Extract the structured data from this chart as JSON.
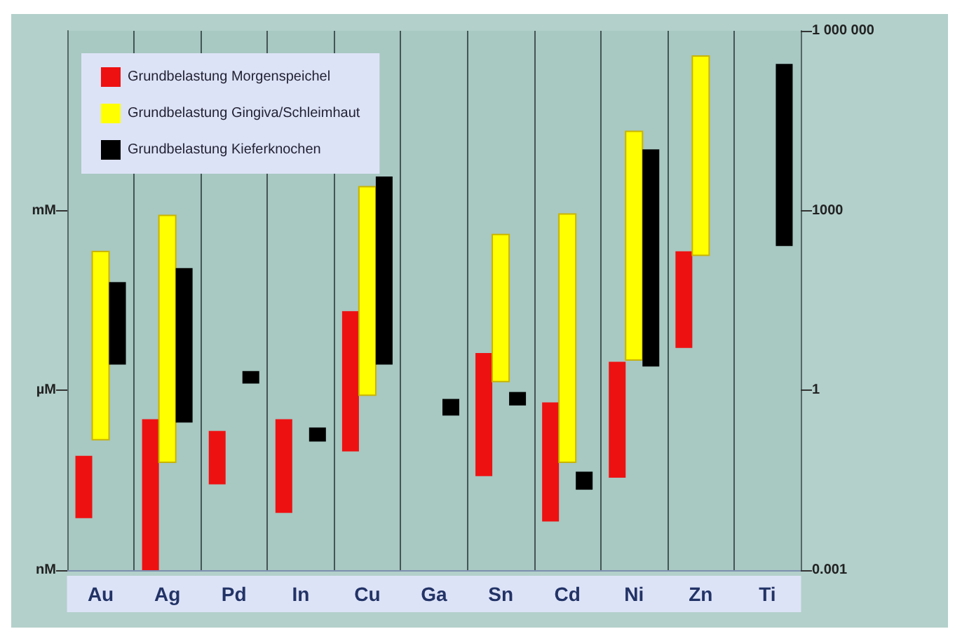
{
  "chart_data": {
    "type": "bar",
    "categories": [
      "Au",
      "Ag",
      "Pd",
      "In",
      "Cu",
      "Ga",
      "Sn",
      "Cd",
      "Ni",
      "Zn",
      "Ti"
    ],
    "series": [
      {
        "name": "Grundbelastung Morgenspeichel",
        "color": "#ee1111",
        "base": [
          0.0074,
          0.001,
          0.027,
          0.009,
          0.096,
          null,
          0.037,
          0.0065,
          0.035,
          5.1,
          null
        ],
        "values": [
          0.0736,
          0.329,
          0.183,
          0.321,
          20.904,
          null,
          4.163,
          0.6235,
          2.965,
          204.9,
          null
        ]
      },
      {
        "name": "Grundbelastung Gingiva/Schleimhaut",
        "color": "#ffff00",
        "base": [
          0.15,
          0.063,
          null,
          null,
          0.83,
          null,
          1.4,
          0.063,
          3.2,
          180,
          null
        ],
        "values": [
          207.85,
          829.937,
          null,
          null,
          2499.17,
          null,
          398.6,
          879.937,
          20996.8,
          379820,
          null
        ]
      },
      {
        "name": "Grundbelastung Kieferknochen",
        "color": "#000000",
        "base": [
          2.7,
          0.29,
          1.3,
          0.14,
          2.7,
          0.38,
          0.56,
          0.022,
          2.5,
          null,
          256
        ],
        "values": [
          61.3,
          109.71,
          0.8,
          0.1,
          3697.3,
          0.34,
          0.38,
          0.022,
          10497.5,
          null,
          279744
        ]
      }
    ],
    "log": "y",
    "ylim": [
      0.001,
      1000000
    ],
    "yticks": [
      0.001,
      1,
      1000,
      {
        "value": 1000000,
        "label": "1 000 000"
      }
    ],
    "annotations": [
      "nM",
      "µM",
      "mM"
    ],
    "grid": "x",
    "legend": "top left"
  }
}
